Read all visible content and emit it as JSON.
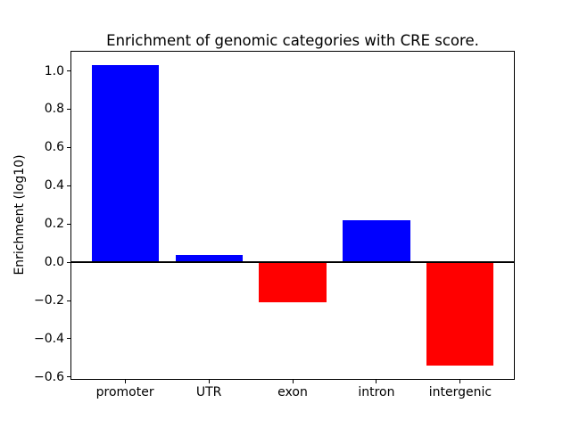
{
  "chart_data": {
    "type": "bar",
    "title": "Enrichment of genomic categories with CRE score.",
    "ylabel": "Enrichment (log10)",
    "xlabel": "",
    "categories": [
      "promoter",
      "UTR",
      "exon",
      "intron",
      "intergenic"
    ],
    "values": [
      1.03,
      0.04,
      -0.21,
      0.22,
      -0.54
    ],
    "bar_colors": [
      "#0000ff",
      "#0000ff",
      "#ff0000",
      "#0000ff",
      "#ff0000"
    ],
    "positive_color": "#0000ff",
    "negative_color": "#ff0000",
    "yticks": [
      1.0,
      0.8,
      0.6,
      0.4,
      0.2,
      0.0,
      -0.2,
      -0.4,
      -0.6
    ],
    "ytick_labels": [
      "1.0",
      "0.8",
      "0.6",
      "0.4",
      "0.2",
      "0.0",
      "−0.2",
      "−0.4",
      "−0.6"
    ],
    "ylim": [
      -0.61,
      1.1
    ],
    "xlim": [
      -0.64,
      4.64
    ],
    "bar_width_fraction": 0.8,
    "grid": false,
    "legend_position": "none",
    "zero_line": true,
    "axis_color": "#000000",
    "background_color": "#ffffff"
  }
}
